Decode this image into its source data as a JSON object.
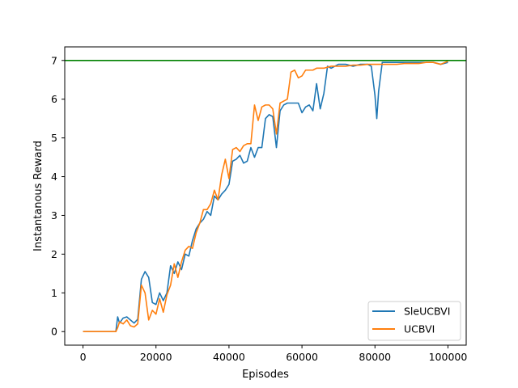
{
  "chart_data": {
    "type": "line",
    "title": "",
    "xlabel": "Episodes",
    "ylabel": "Instantanous Reward",
    "xlim": [
      -5000,
      105000
    ],
    "ylim": [
      -0.35,
      7.35
    ],
    "xticks": [
      0,
      20000,
      40000,
      60000,
      80000,
      100000
    ],
    "xtick_labels": [
      "0",
      "20000",
      "40000",
      "60000",
      "80000",
      "100000"
    ],
    "yticks": [
      0,
      1,
      2,
      3,
      4,
      5,
      6,
      7
    ],
    "ytick_labels": [
      "0",
      "1",
      "2",
      "3",
      "4",
      "5",
      "6",
      "7"
    ],
    "grid": false,
    "legend_location": "lower-right",
    "reference_line": {
      "y": 7,
      "color": "#008000"
    },
    "series": [
      {
        "name": "SleUCBVI",
        "color": "#1f77b4",
        "x": [
          0,
          9000,
          9500,
          10000,
          11000,
          12000,
          13000,
          14000,
          15000,
          16000,
          17000,
          18000,
          19000,
          20000,
          21000,
          22000,
          23000,
          24000,
          25000,
          26000,
          27000,
          28000,
          29000,
          30000,
          31000,
          32000,
          33000,
          34000,
          35000,
          36000,
          37000,
          38000,
          39000,
          40000,
          41000,
          42000,
          43000,
          44000,
          45000,
          46000,
          47000,
          48000,
          49000,
          50000,
          51000,
          52000,
          53000,
          54000,
          55000,
          56000,
          57000,
          58000,
          59000,
          60000,
          61000,
          62000,
          63000,
          64000,
          65000,
          66000,
          67000,
          68000,
          69000,
          70000,
          72000,
          74000,
          76000,
          78000,
          79000,
          80000,
          80500,
          81000,
          82000,
          84000,
          86000,
          88000,
          90000,
          92000,
          94000,
          96000,
          98000,
          100000
        ],
        "y": [
          0,
          0,
          0.38,
          0.22,
          0.35,
          0.38,
          0.3,
          0.22,
          0.32,
          1.35,
          1.55,
          1.4,
          0.75,
          0.7,
          1.0,
          0.8,
          1.0,
          1.7,
          1.5,
          1.8,
          1.6,
          2.0,
          1.95,
          2.35,
          2.65,
          2.8,
          2.9,
          3.1,
          3.0,
          3.5,
          3.4,
          3.55,
          3.65,
          3.8,
          4.4,
          4.45,
          4.55,
          4.35,
          4.4,
          4.75,
          4.5,
          4.75,
          4.75,
          5.5,
          5.6,
          5.55,
          4.75,
          5.7,
          5.85,
          5.9,
          5.9,
          5.9,
          5.9,
          5.65,
          5.8,
          5.85,
          5.7,
          6.4,
          5.75,
          6.15,
          6.85,
          6.8,
          6.85,
          6.9,
          6.9,
          6.85,
          6.9,
          6.9,
          6.85,
          6.1,
          5.5,
          6.2,
          6.95,
          6.95,
          6.95,
          6.95,
          6.95,
          6.95,
          6.95,
          6.95,
          6.9,
          6.95
        ]
      },
      {
        "name": "UCBVI",
        "color": "#ff7f0e",
        "x": [
          0,
          9000,
          9500,
          10000,
          11000,
          12000,
          13000,
          14000,
          15000,
          16000,
          17000,
          18000,
          19000,
          20000,
          21000,
          22000,
          23000,
          24000,
          25000,
          26000,
          27000,
          28000,
          29000,
          30000,
          31000,
          32000,
          33000,
          34000,
          35000,
          36000,
          37000,
          38000,
          39000,
          40000,
          41000,
          42000,
          43000,
          44000,
          45000,
          46000,
          47000,
          48000,
          49000,
          50000,
          51000,
          52000,
          53000,
          54000,
          55000,
          56000,
          57000,
          58000,
          59000,
          60000,
          61000,
          62000,
          63000,
          64000,
          65000,
          66000,
          68000,
          70000,
          72000,
          74000,
          76000,
          78000,
          80000,
          82000,
          84000,
          86000,
          88000,
          90000,
          92000,
          94000,
          96000,
          98000,
          100000
        ],
        "y": [
          0,
          0,
          0.1,
          0.25,
          0.2,
          0.3,
          0.15,
          0.12,
          0.2,
          1.2,
          1.0,
          0.3,
          0.55,
          0.45,
          0.85,
          0.5,
          0.95,
          1.2,
          1.75,
          1.4,
          1.8,
          2.1,
          2.2,
          2.15,
          2.55,
          2.8,
          3.15,
          3.15,
          3.3,
          3.65,
          3.4,
          4.05,
          4.45,
          3.95,
          4.7,
          4.75,
          4.65,
          4.8,
          4.85,
          4.85,
          5.85,
          5.45,
          5.8,
          5.85,
          5.85,
          5.75,
          5.1,
          5.9,
          5.95,
          6.0,
          6.7,
          6.75,
          6.55,
          6.6,
          6.75,
          6.75,
          6.75,
          6.8,
          6.8,
          6.8,
          6.85,
          6.85,
          6.85,
          6.88,
          6.88,
          6.9,
          6.9,
          6.9,
          6.9,
          6.9,
          6.92,
          6.92,
          6.92,
          6.95,
          6.95,
          6.9,
          6.98
        ]
      }
    ]
  }
}
